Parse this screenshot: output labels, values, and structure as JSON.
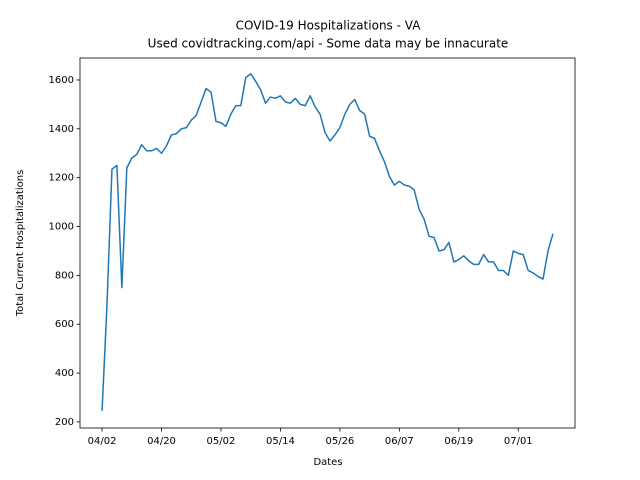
{
  "chart_data": {
    "type": "line",
    "title": "COVID-19 Hospitalizations - VA",
    "subtitle": "Used covidtracking.com/api - Some data may be innacurate",
    "x_label": "Dates",
    "y_label": "Total Current Hospitalizations",
    "categories": [
      "04/02",
      null,
      null,
      null,
      null,
      null,
      null,
      null,
      null,
      null,
      null,
      null,
      "04/20",
      null,
      null,
      null,
      null,
      null,
      null,
      null,
      null,
      null,
      null,
      null,
      "05/02",
      null,
      null,
      null,
      null,
      null,
      null,
      null,
      null,
      null,
      null,
      null,
      "05/14",
      null,
      null,
      null,
      null,
      null,
      null,
      null,
      null,
      null,
      null,
      null,
      "05/26",
      null,
      null,
      null,
      null,
      null,
      null,
      null,
      null,
      null,
      null,
      null,
      "06/07",
      null,
      null,
      null,
      null,
      null,
      null,
      null,
      null,
      null,
      null,
      null,
      "06/19",
      null,
      null,
      null,
      null,
      null,
      null,
      null,
      null,
      null,
      null,
      null,
      "07/01",
      null,
      null,
      null,
      null,
      null,
      null,
      null
    ],
    "series": [
      {
        "name": "Hospitalizations",
        "color": "#1f77b4",
        "values": [
          245,
          680,
          1235,
          1250,
          750,
          1240,
          1280,
          1295,
          1335,
          1310,
          1310,
          1320,
          1300,
          1330,
          1375,
          1380,
          1400,
          1405,
          1435,
          1455,
          1510,
          1565,
          1550,
          1430,
          1425,
          1410,
          1460,
          1495,
          1495,
          1610,
          1625,
          1595,
          1560,
          1505,
          1530,
          1525,
          1535,
          1510,
          1505,
          1525,
          1500,
          1495,
          1535,
          1490,
          1460,
          1385,
          1350,
          1375,
          1405,
          1460,
          1500,
          1520,
          1475,
          1460,
          1370,
          1360,
          1310,
          1265,
          1205,
          1170,
          1185,
          1170,
          1165,
          1150,
          1070,
          1030,
          960,
          955,
          900,
          905,
          935,
          855,
          865,
          880,
          860,
          845,
          845,
          885,
          855,
          855,
          820,
          820,
          800,
          900,
          890,
          885,
          820,
          810,
          795,
          785,
          900,
          970
        ]
      }
    ],
    "ylim": [
      175,
      1690
    ],
    "yticks": [
      200,
      400,
      600,
      800,
      1000,
      1200,
      1400,
      1600
    ]
  }
}
